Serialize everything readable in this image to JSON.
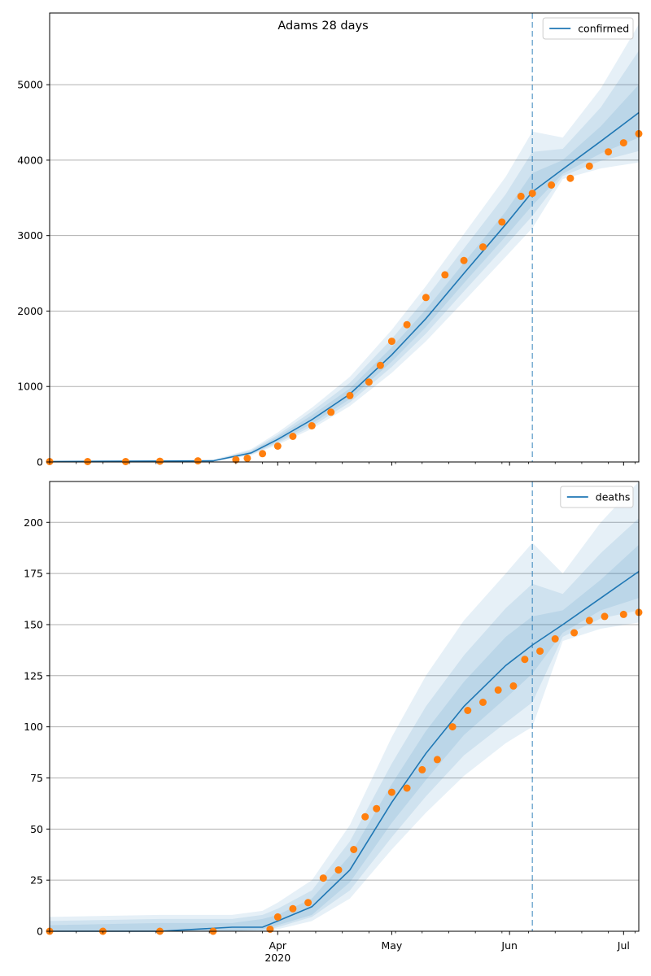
{
  "figure": {
    "title": "Adams 28 days"
  },
  "colors": {
    "line": "#1f77b4",
    "observed": "#ff7f0e",
    "band": "#1f77b4",
    "cutoff": "#1f77b4",
    "grid": "#b0b0b0"
  },
  "chart_data": [
    {
      "type": "line",
      "title": "Adams 28 days",
      "xlabel": "",
      "ylabel": "",
      "legend": {
        "position": "top-right",
        "entries": [
          "confirmed"
        ]
      },
      "grid": "horizontal",
      "xlim": [
        "2020-02-01",
        "2020-07-05"
      ],
      "ylim": [
        0,
        5950
      ],
      "yticks": [
        0,
        1000,
        2000,
        3000,
        4000,
        5000
      ],
      "xticks": [
        {
          "date": "2020-04-01",
          "label": "Apr",
          "sublabel": "2020"
        },
        {
          "date": "2020-05-01",
          "label": "May",
          "sublabel": ""
        },
        {
          "date": "2020-06-01",
          "label": "Jun",
          "sublabel": ""
        },
        {
          "date": "2020-07-01",
          "label": "Jul",
          "sublabel": ""
        }
      ],
      "cutoff_date": "2020-06-07",
      "series": [
        {
          "name": "confirmed",
          "kind": "line",
          "x": [
            "2020-02-01",
            "2020-03-15",
            "2020-03-25",
            "2020-04-01",
            "2020-04-10",
            "2020-04-20",
            "2020-05-01",
            "2020-05-10",
            "2020-05-20",
            "2020-05-31",
            "2020-06-07",
            "2020-06-15",
            "2020-06-25",
            "2020-07-05"
          ],
          "y": [
            5,
            15,
            120,
            300,
            560,
            900,
            1420,
            1900,
            2500,
            3150,
            3580,
            3880,
            4250,
            4630
          ]
        },
        {
          "kind": "bands",
          "x": [
            "2020-02-01",
            "2020-03-15",
            "2020-03-25",
            "2020-04-01",
            "2020-04-10",
            "2020-04-20",
            "2020-05-01",
            "2020-05-10",
            "2020-05-20",
            "2020-05-31",
            "2020-06-07",
            "2020-06-15",
            "2020-06-25",
            "2020-07-05"
          ],
          "bands": [
            {
              "low": [
                0,
                5,
                90,
                230,
                440,
                740,
                1180,
                1600,
                2130,
                2720,
                3100,
                3750,
                3890,
                3970
              ],
              "high": [
                20,
                30,
                170,
                390,
                720,
                1130,
                1750,
                2330,
                3020,
                3780,
                4380,
                4300,
                4950,
                5800
              ]
            },
            {
              "low": [
                0,
                8,
                100,
                250,
                470,
                790,
                1260,
                1700,
                2260,
                2870,
                3260,
                3790,
                3990,
                4120
              ],
              "high": [
                15,
                25,
                155,
                360,
                670,
                1050,
                1630,
                2170,
                2830,
                3550,
                4110,
                4150,
                4700,
                5450
              ]
            },
            {
              "low": [
                0,
                10,
                108,
                268,
                505,
                835,
                1330,
                1790,
                2370,
                2990,
                3400,
                3820,
                4090,
                4300
              ],
              "high": [
                10,
                20,
                140,
                335,
                620,
                975,
                1520,
                2020,
                2640,
                3320,
                3830,
                4000,
                4450,
                5000
              ]
            }
          ]
        },
        {
          "name": "observed",
          "kind": "points",
          "x": [
            "2020-02-01",
            "2020-02-11",
            "2020-02-21",
            "2020-03-01",
            "2020-03-11",
            "2020-03-21",
            "2020-03-24",
            "2020-03-28",
            "2020-04-01",
            "2020-04-05",
            "2020-04-10",
            "2020-04-15",
            "2020-04-20",
            "2020-04-25",
            "2020-04-28",
            "2020-05-01",
            "2020-05-05",
            "2020-05-10",
            "2020-05-15",
            "2020-05-20",
            "2020-05-25",
            "2020-05-30",
            "2020-06-04",
            "2020-06-07",
            "2020-06-12",
            "2020-06-17",
            "2020-06-22",
            "2020-06-27",
            "2020-07-01",
            "2020-07-05"
          ],
          "y": [
            5,
            5,
            5,
            10,
            15,
            30,
            50,
            110,
            210,
            340,
            480,
            660,
            880,
            1060,
            1280,
            1600,
            1820,
            2180,
            2480,
            2670,
            2850,
            3180,
            3520,
            3560,
            3670,
            3760,
            3920,
            4110,
            4230,
            4350
          ]
        }
      ]
    },
    {
      "type": "line",
      "title": "",
      "xlabel": "",
      "ylabel": "",
      "legend": {
        "position": "top-right",
        "entries": [
          "deaths"
        ]
      },
      "grid": "horizontal",
      "xlim": [
        "2020-02-01",
        "2020-07-05"
      ],
      "ylim": [
        0,
        220
      ],
      "yticks": [
        0,
        25,
        50,
        75,
        100,
        125,
        150,
        175,
        200
      ],
      "xticks": [
        {
          "date": "2020-04-01",
          "label": "Apr",
          "sublabel": "2020"
        },
        {
          "date": "2020-05-01",
          "label": "May",
          "sublabel": ""
        },
        {
          "date": "2020-06-01",
          "label": "Jun",
          "sublabel": ""
        },
        {
          "date": "2020-07-01",
          "label": "Jul",
          "sublabel": ""
        }
      ],
      "cutoff_date": "2020-06-07",
      "series": [
        {
          "name": "deaths",
          "kind": "line",
          "x": [
            "2020-02-01",
            "2020-03-01",
            "2020-03-20",
            "2020-03-28",
            "2020-04-01",
            "2020-04-10",
            "2020-04-20",
            "2020-05-01",
            "2020-05-10",
            "2020-05-20",
            "2020-05-31",
            "2020-06-07",
            "2020-06-15",
            "2020-06-25",
            "2020-07-05"
          ],
          "y": [
            0,
            0,
            2,
            2,
            5,
            12,
            30,
            63,
            87,
            110,
            130,
            140,
            150,
            163,
            176
          ]
        },
        {
          "kind": "bands",
          "x": [
            "2020-02-01",
            "2020-03-01",
            "2020-03-20",
            "2020-03-28",
            "2020-04-01",
            "2020-04-10",
            "2020-04-20",
            "2020-05-01",
            "2020-05-10",
            "2020-05-20",
            "2020-05-31",
            "2020-06-07",
            "2020-06-15",
            "2020-06-25",
            "2020-07-05"
          ],
          "bands": [
            {
              "low": [
                0,
                0,
                0,
                0,
                1,
                5,
                16,
                40,
                58,
                76,
                92,
                100,
                142,
                148,
                151
              ],
              "high": [
                7,
                8,
                8,
                10,
                14,
                25,
                52,
                95,
                125,
                152,
                175,
                190,
                175,
                200,
                220
              ]
            },
            {
              "low": [
                0,
                0,
                0,
                0,
                2,
                7,
                20,
                46,
                66,
                86,
                102,
                112,
                144,
                153,
                157
              ],
              "high": [
                5,
                6,
                6,
                8,
                11,
                20,
                44,
                82,
                110,
                135,
                158,
                170,
                165,
                185,
                202
              ]
            },
            {
              "low": [
                0,
                0,
                0,
                1,
                3,
                8,
                24,
                53,
                74,
                96,
                114,
                126,
                146,
                157,
                163
              ],
              "high": [
                3,
                4,
                4,
                6,
                8,
                16,
                37,
                72,
                98,
                122,
                144,
                154,
                157,
                172,
                189
              ]
            }
          ]
        },
        {
          "name": "observed",
          "kind": "points",
          "x": [
            "2020-02-01",
            "2020-02-15",
            "2020-03-01",
            "2020-03-15",
            "2020-03-30",
            "2020-04-01",
            "2020-04-05",
            "2020-04-09",
            "2020-04-13",
            "2020-04-17",
            "2020-04-21",
            "2020-04-24",
            "2020-04-27",
            "2020-05-01",
            "2020-05-05",
            "2020-05-09",
            "2020-05-13",
            "2020-05-17",
            "2020-05-21",
            "2020-05-25",
            "2020-05-29",
            "2020-06-02",
            "2020-06-05",
            "2020-06-09",
            "2020-06-13",
            "2020-06-18",
            "2020-06-22",
            "2020-06-26",
            "2020-07-01",
            "2020-07-05"
          ],
          "y": [
            0,
            0,
            0,
            0,
            1,
            7,
            11,
            14,
            26,
            30,
            40,
            56,
            60,
            68,
            70,
            79,
            84,
            100,
            108,
            112,
            118,
            120,
            133,
            137,
            143,
            146,
            152,
            154,
            155,
            156
          ]
        }
      ]
    }
  ]
}
